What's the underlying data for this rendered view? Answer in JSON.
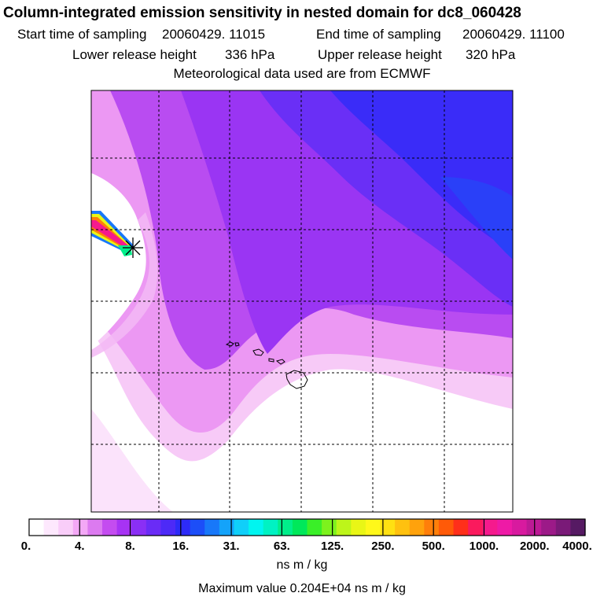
{
  "header": {
    "title": "Column-integrated emission sensitivity in nested domain for dc8_060428",
    "start_label": "Start time of sampling",
    "start_value": "20060429. 11015",
    "end_label": "End time of sampling",
    "end_value": "20060429. 11100",
    "lower_label": "Lower release height",
    "lower_value": "336 hPa",
    "upper_label": "Upper release height",
    "upper_value": "320 hPa",
    "met": "Meteorological data used are from ECMWF"
  },
  "colorbar": {
    "labels": [
      "0.",
      "4.",
      "8.",
      "16.",
      "31.",
      "63.",
      "125.",
      "250.",
      "500.",
      "1000.",
      "2000.",
      "4000."
    ],
    "colors": [
      "#ffffff",
      "#fde8fd",
      "#f9cdf9",
      "#f3a8f6",
      "#dc7af0",
      "#c44cf0",
      "#a733f4",
      "#8a2ff5",
      "#6a2cf6",
      "#4d2af7",
      "#2d2bf8",
      "#1c4ef8",
      "#1878f9",
      "#14a3fa",
      "#10cff9",
      "#00f5f0",
      "#00f2c3",
      "#00ee8a",
      "#00e85a",
      "#3aef28",
      "#7df21d",
      "#bdf51a",
      "#e9f616",
      "#fff81a",
      "#ffe012",
      "#ffc10f",
      "#ffa20c",
      "#ff7f0a",
      "#ff5a08",
      "#ff2f1a",
      "#fa1a5d",
      "#f51a8d",
      "#ee1aa6",
      "#d81a9f",
      "#bc1a95",
      "#9c1a88",
      "#7a1a78",
      "#561a63"
    ],
    "units": "ns m / kg",
    "max_value": "Maximum value  0.204E+04 ns m / kg"
  },
  "map": {
    "release_marker": "asterisk-marker",
    "colors": {
      "white": "#ffffff",
      "light_pink": "#f7caf7",
      "pink": "#ec98f3",
      "violet": "#b94cf1",
      "purple": "#9a35f3",
      "blue_violet": "#6a2ff6",
      "blue": "#3a2cf8",
      "deep_blue": "#2a40f8"
    }
  }
}
